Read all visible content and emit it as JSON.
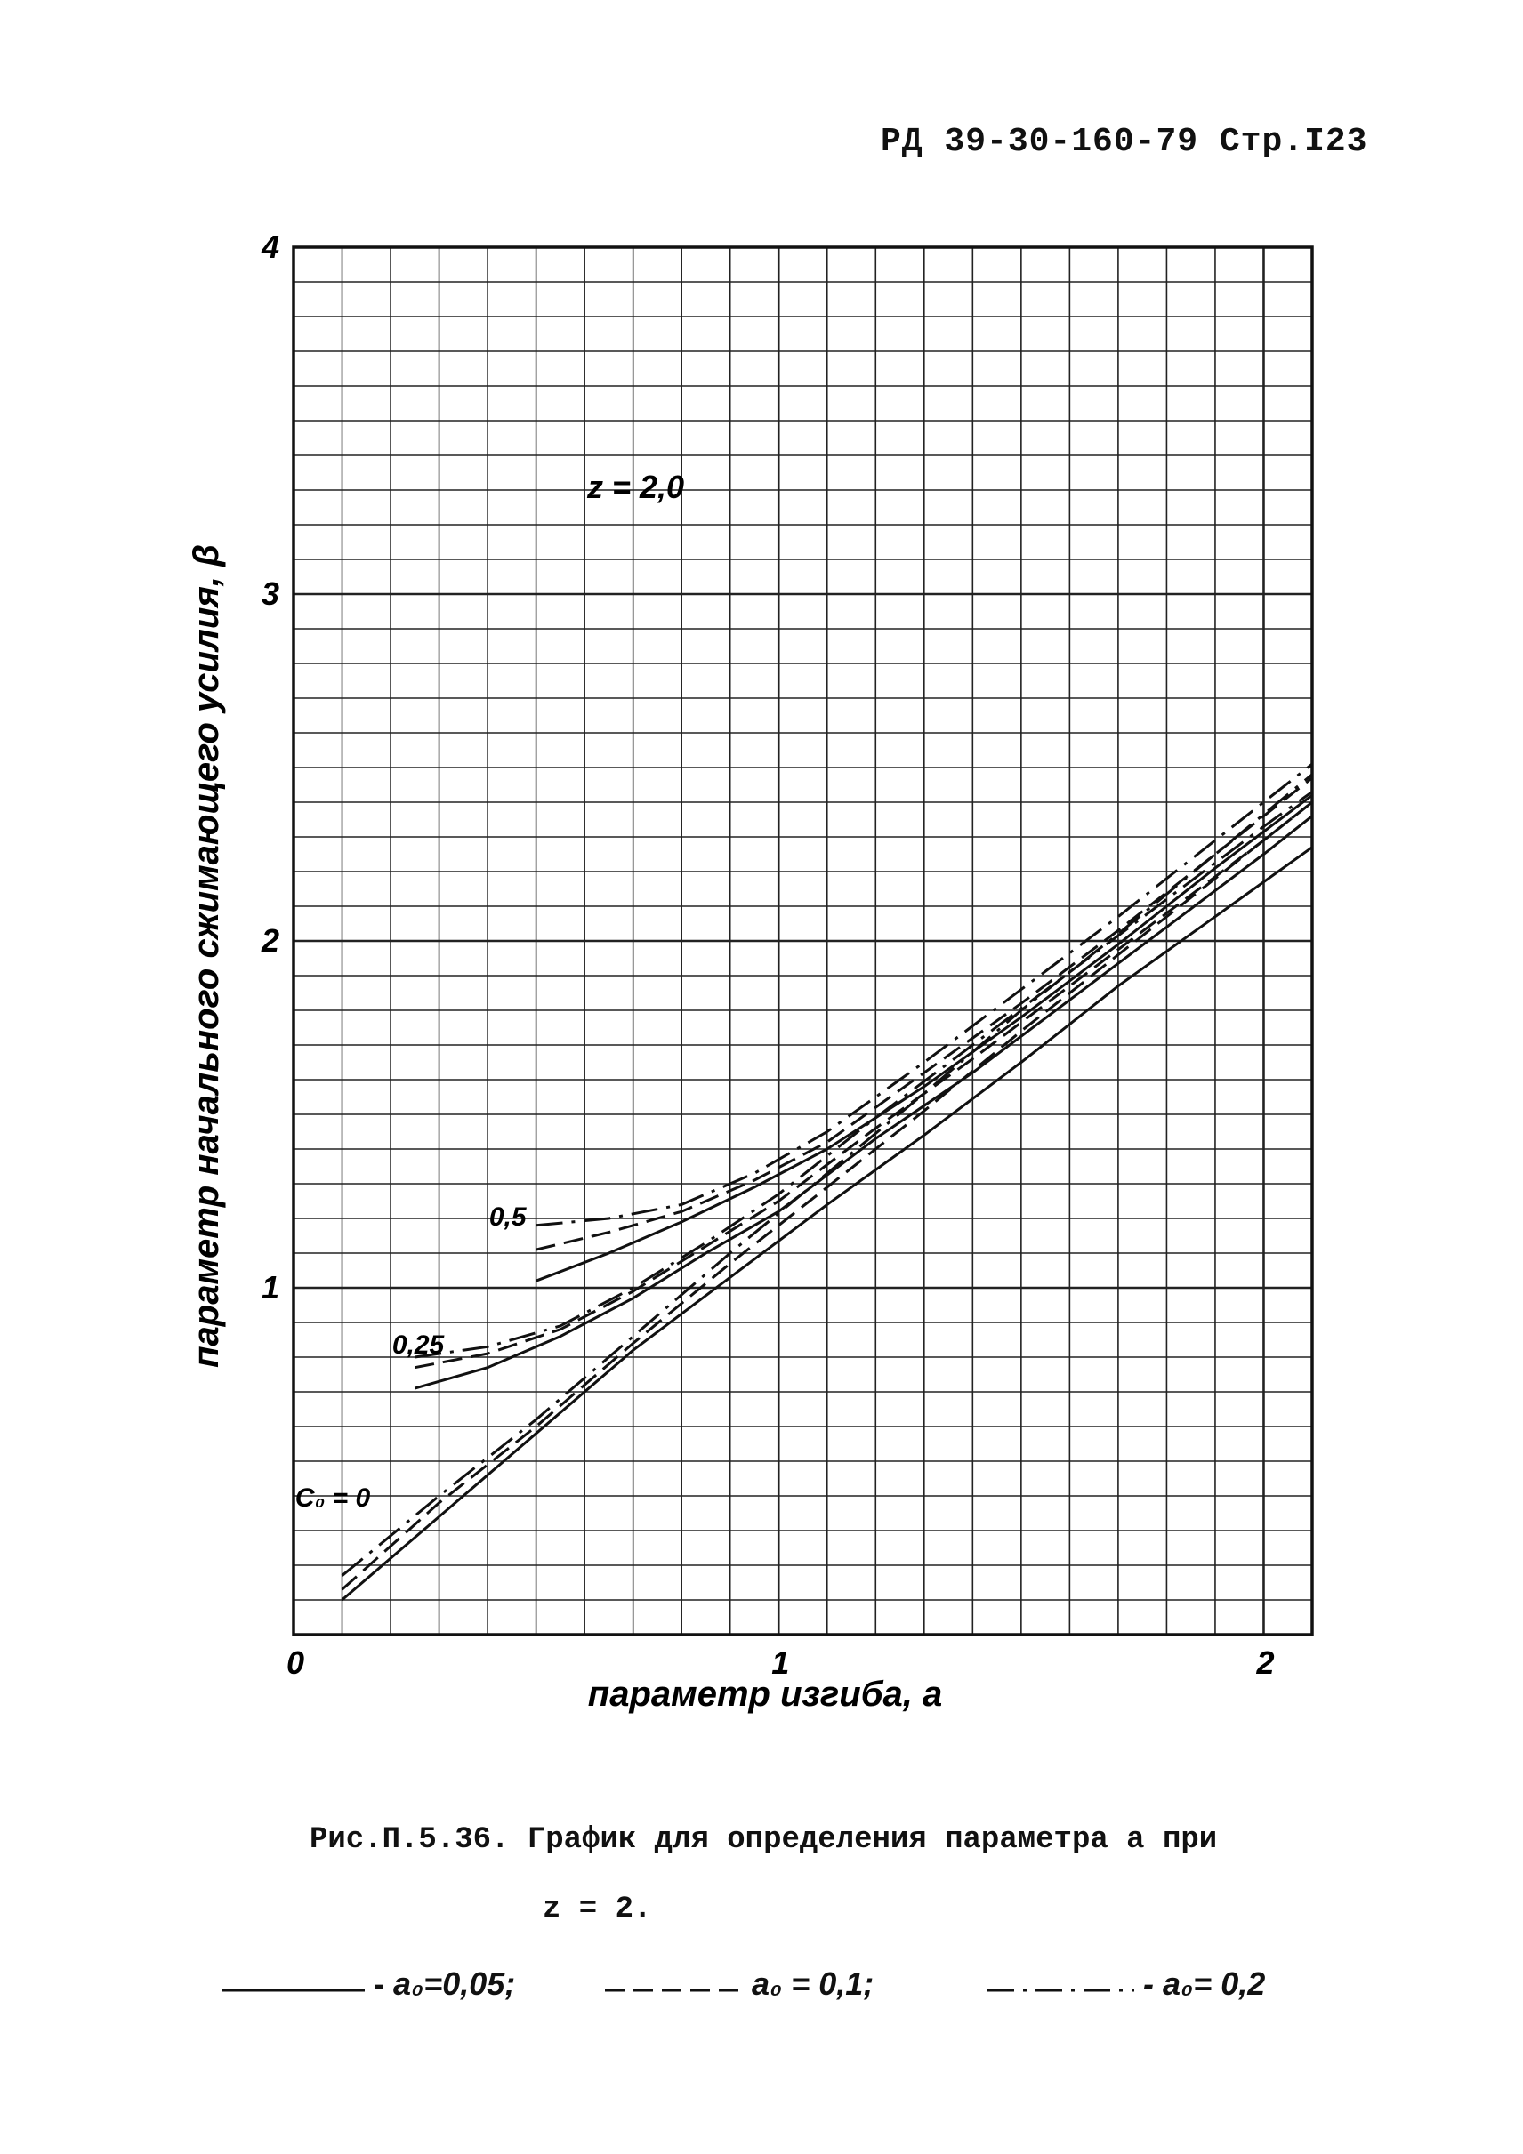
{
  "header": {
    "text": "РД 39-30-160-79 Стр.I23"
  },
  "caption": {
    "line1": "Рис.П.5.36. График для определения параметра a при",
    "line2": "z = 2."
  },
  "legend": [
    {
      "label": "- a₀=0,05;",
      "style": "solid"
    },
    {
      "label": "a₀ = 0,1;",
      "style": "dashed"
    },
    {
      "label": "- a₀= 0,2",
      "style": "dashdot"
    }
  ],
  "chart_data": {
    "type": "line",
    "ylabel": "параметр начального сжимающего усилия, β",
    "xlabel": "параметр изгиба, a",
    "annotation": "z = 2,0",
    "xlim": [
      0,
      2.1
    ],
    "ylim": [
      0,
      4
    ],
    "grid": true,
    "x_ticks": [
      "0",
      "1",
      "2"
    ],
    "y_ticks": [
      "1",
      "2",
      "3",
      "4"
    ],
    "group_labels": [
      {
        "label": "C₀ = 0",
        "x": 0.15,
        "y": 0.38
      },
      {
        "label": "0,25",
        "x": 0.35,
        "y": 0.82
      },
      {
        "label": "0,5",
        "x": 0.55,
        "y": 1.19
      }
    ],
    "series": [
      {
        "name": "a₀=0,05",
        "style": "solid",
        "x": [
          0.1,
          0.3,
          0.5,
          0.7,
          0.9,
          1.1,
          1.3,
          1.5,
          1.7,
          1.9,
          2.1
        ],
        "y": [
          0.1,
          0.34,
          0.58,
          0.82,
          1.03,
          1.24,
          1.44,
          1.65,
          1.87,
          2.07,
          2.27
        ]
      },
      {
        "name": "a₀=0,1",
        "style": "dashed",
        "x": [
          0.1,
          0.3,
          0.5,
          0.7,
          0.9,
          1.1,
          1.3,
          1.5,
          1.7,
          1.9,
          2.1
        ],
        "y": [
          0.13,
          0.38,
          0.6,
          0.84,
          1.07,
          1.29,
          1.51,
          1.74,
          1.96,
          2.18,
          2.4
        ]
      },
      {
        "name": "a₀=0,2",
        "style": "dashdot",
        "x": [
          0.1,
          0.3,
          0.5,
          0.7,
          0.9,
          1.1,
          1.3,
          1.5,
          1.7,
          1.9,
          2.1
        ],
        "y": [
          0.17,
          0.4,
          0.62,
          0.86,
          1.1,
          1.33,
          1.56,
          1.8,
          2.02,
          2.25,
          2.48
        ]
      },
      {
        "name": "a₀=0,05",
        "style": "solid",
        "x": [
          0.25,
          0.4,
          0.55,
          0.7,
          0.85,
          1.0,
          1.2,
          1.4,
          1.6,
          1.8,
          2.0,
          2.1
        ],
        "y": [
          0.71,
          0.77,
          0.86,
          0.97,
          1.1,
          1.22,
          1.43,
          1.62,
          1.83,
          2.04,
          2.25,
          2.36
        ]
      },
      {
        "name": "a₀=0,1",
        "style": "dashed",
        "x": [
          0.25,
          0.4,
          0.55,
          0.7,
          0.85,
          1.0,
          1.2,
          1.4,
          1.6,
          1.8,
          2.0,
          2.1
        ],
        "y": [
          0.77,
          0.81,
          0.88,
          0.99,
          1.12,
          1.25,
          1.46,
          1.66,
          1.87,
          2.08,
          2.29,
          2.4
        ]
      },
      {
        "name": "a₀=0,2",
        "style": "dashdot",
        "x": [
          0.25,
          0.4,
          0.55,
          0.7,
          0.85,
          1.0,
          1.2,
          1.4,
          1.6,
          1.8,
          2.0,
          2.1
        ],
        "y": [
          0.8,
          0.83,
          0.89,
          1.0,
          1.13,
          1.27,
          1.49,
          1.7,
          1.91,
          2.12,
          2.33,
          2.43
        ]
      },
      {
        "name": "a₀=0,05",
        "style": "solid",
        "x": [
          0.5,
          0.65,
          0.8,
          0.95,
          1.1,
          1.3,
          1.5,
          1.7,
          1.9,
          2.1
        ],
        "y": [
          1.02,
          1.1,
          1.19,
          1.29,
          1.4,
          1.58,
          1.78,
          1.99,
          2.21,
          2.42
        ]
      },
      {
        "name": "a₀=0,1",
        "style": "dashed",
        "x": [
          0.5,
          0.65,
          0.8,
          0.95,
          1.1,
          1.3,
          1.5,
          1.7,
          1.9,
          2.1
        ],
        "y": [
          1.11,
          1.16,
          1.22,
          1.31,
          1.42,
          1.62,
          1.82,
          2.03,
          2.25,
          2.47
        ]
      },
      {
        "name": "a₀=0,2",
        "style": "dashdot",
        "x": [
          0.5,
          0.65,
          0.8,
          0.95,
          1.1,
          1.3,
          1.5,
          1.7,
          1.9,
          2.1
        ],
        "y": [
          1.18,
          1.2,
          1.24,
          1.33,
          1.45,
          1.65,
          1.86,
          2.07,
          2.29,
          2.51
        ]
      }
    ]
  }
}
